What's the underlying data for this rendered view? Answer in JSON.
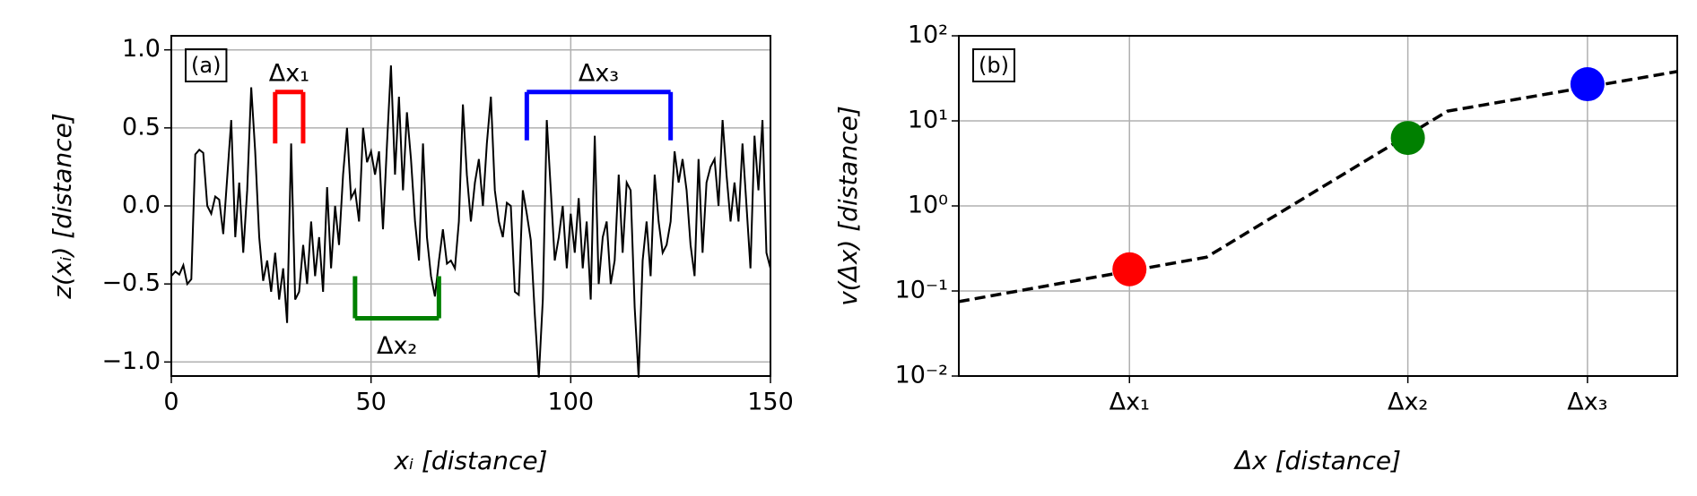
{
  "chart_data": [
    {
      "type": "line",
      "panel_label": "(a)",
      "xlabel": "xᵢ [distance]",
      "ylabel": "z(xᵢ) [distance]",
      "xlim": [
        0,
        150
      ],
      "xticks": [
        0,
        50,
        100,
        150
      ],
      "ylim": [
        -1.09,
        1.09
      ],
      "yticks": [
        {
          "value": -1.0,
          "label": "−1.0"
        },
        {
          "value": -0.5,
          "label": "−0.5"
        },
        {
          "value": 0.0,
          "label": "0.0"
        },
        {
          "value": 0.5,
          "label": "0.5"
        },
        {
          "value": 1.0,
          "label": "1.0"
        }
      ],
      "grid": true,
      "color": "#000000",
      "x": [
        0,
        1,
        2,
        3,
        4,
        5,
        6,
        7,
        8,
        9,
        10,
        11,
        12,
        13,
        14,
        15,
        16,
        17,
        18,
        19,
        20,
        21,
        22,
        23,
        24,
        25,
        26,
        27,
        28,
        29,
        30,
        31,
        32,
        33,
        34,
        35,
        36,
        37,
        38,
        39,
        40,
        41,
        42,
        43,
        44,
        45,
        46,
        47,
        48,
        49,
        50,
        51,
        52,
        53,
        54,
        55,
        56,
        57,
        58,
        59,
        60,
        61,
        62,
        63,
        64,
        65,
        66,
        67,
        68,
        69,
        70,
        71,
        72,
        73,
        74,
        75,
        76,
        77,
        78,
        79,
        80,
        81,
        82,
        83,
        84,
        85,
        86,
        87,
        88,
        89,
        90,
        91,
        92,
        93,
        94,
        95,
        96,
        97,
        98,
        99,
        100,
        101,
        102,
        103,
        104,
        105,
        106,
        107,
        108,
        109,
        110,
        111,
        112,
        113,
        114,
        115,
        116,
        117,
        118,
        119,
        120,
        121,
        122,
        123,
        124,
        125,
        126,
        127,
        128,
        129,
        130,
        131,
        132,
        133,
        134,
        135,
        136,
        137,
        138,
        139,
        140,
        141,
        142,
        143,
        144,
        145,
        146,
        147,
        148,
        149,
        150
      ],
      "values": [
        -0.45,
        -0.42,
        -0.44,
        -0.38,
        -0.5,
        -0.47,
        0.33,
        0.36,
        0.34,
        0.0,
        -0.05,
        0.06,
        0.04,
        -0.18,
        0.18,
        0.55,
        -0.2,
        0.15,
        -0.3,
        0.1,
        0.76,
        0.35,
        -0.2,
        -0.48,
        -0.35,
        -0.55,
        -0.3,
        -0.6,
        -0.4,
        -0.75,
        0.4,
        -0.6,
        -0.55,
        -0.25,
        -0.5,
        -0.1,
        -0.45,
        -0.2,
        -0.55,
        0.12,
        -0.4,
        0.0,
        -0.25,
        0.2,
        0.5,
        0.05,
        0.1,
        -0.1,
        0.5,
        0.28,
        0.35,
        0.2,
        0.35,
        -0.15,
        0.4,
        0.9,
        0.2,
        0.7,
        0.1,
        0.6,
        0.3,
        -0.1,
        -0.35,
        0.4,
        -0.2,
        -0.45,
        -0.58,
        -0.35,
        -0.15,
        -0.37,
        -0.35,
        -0.4,
        -0.1,
        0.65,
        0.2,
        -0.1,
        0.15,
        0.3,
        0.0,
        0.4,
        0.7,
        0.1,
        -0.1,
        -0.2,
        0.02,
        0.0,
        -0.55,
        -0.57,
        0.1,
        -0.05,
        -0.22,
        -0.7,
        -1.1,
        -0.6,
        0.55,
        0.1,
        -0.35,
        -0.2,
        0.0,
        -0.4,
        -0.05,
        -0.3,
        0.05,
        -0.4,
        -0.1,
        -0.6,
        0.45,
        -0.5,
        -0.2,
        -0.1,
        -0.5,
        -0.35,
        0.2,
        -0.3,
        0.15,
        0.1,
        -0.65,
        -1.1,
        -0.35,
        -0.1,
        -0.45,
        0.2,
        -0.1,
        -0.3,
        -0.25,
        -0.1,
        0.35,
        0.15,
        0.3,
        0.1,
        -0.25,
        -0.45,
        0.3,
        -0.3,
        0.15,
        0.25,
        0.3,
        0.0,
        0.55,
        0.2,
        -0.1,
        0.15,
        -0.1,
        0.4,
        0.0,
        -0.4,
        0.45,
        0.1,
        0.55,
        -0.3,
        -0.4
      ],
      "brackets": [
        {
          "label": "Δx₁",
          "color": "#ff0000",
          "x": [
            26,
            33
          ],
          "y": [
            0.4,
            0.73
          ]
        },
        {
          "label": "Δx₂",
          "color": "#008000",
          "x": [
            46,
            67
          ],
          "y": [
            -0.45,
            -0.72
          ]
        },
        {
          "label": "Δx₃",
          "color": "#0000ff",
          "x": [
            89,
            125
          ],
          "y": [
            0.42,
            0.73
          ]
        }
      ]
    },
    {
      "type": "line",
      "panel_label": "(b)",
      "xlabel": "Δx [distance]",
      "ylabel": "v(Δx) [distance]",
      "log_y": true,
      "xlim": [
        0,
        40
      ],
      "xticks": [
        {
          "value": 9.5,
          "label": "Δx₁"
        },
        {
          "value": 25,
          "label": "Δx₂"
        },
        {
          "value": 35,
          "label": "Δx₃"
        }
      ],
      "ylim": [
        0.01,
        100
      ],
      "yticks": [
        {
          "value": 0.01,
          "label": "10⁻²"
        },
        {
          "value": 0.1,
          "label": "10⁻¹"
        },
        {
          "value": 1,
          "label": "10⁰"
        },
        {
          "value": 10,
          "label": "10¹"
        },
        {
          "value": 100,
          "label": "10²"
        }
      ],
      "grid": true,
      "color": "#000000",
      "linestyle": "dashed",
      "x": [
        0,
        13.8,
        27.2,
        35,
        40
      ],
      "values": [
        0.075,
        0.25,
        13,
        25,
        38
      ],
      "markers": {
        "x": [
          9.5,
          25,
          35
        ],
        "values": [
          0.18,
          6.3,
          27
        ],
        "colors": [
          "#ff0000",
          "#008000",
          "#0000ff"
        ]
      }
    }
  ]
}
